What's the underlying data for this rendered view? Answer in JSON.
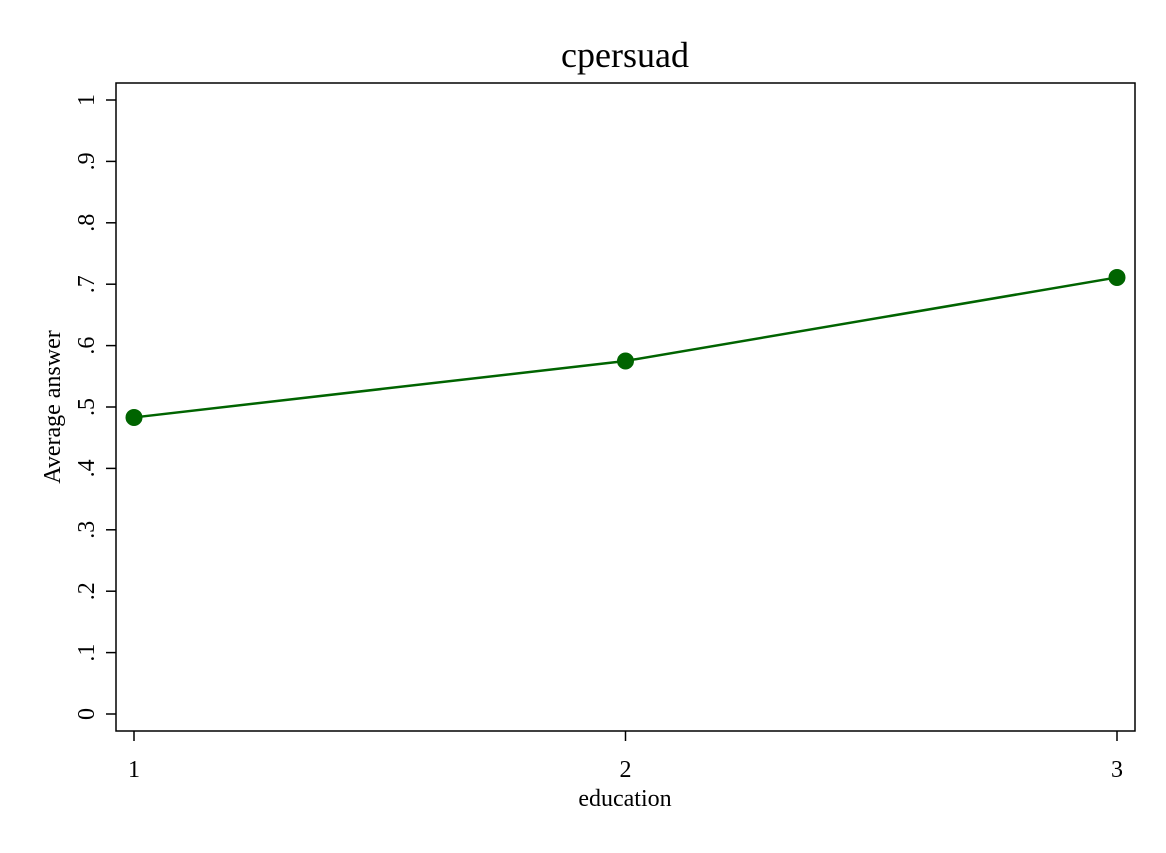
{
  "chart_data": {
    "type": "line",
    "title": "cpersuad",
    "xlabel": "education",
    "ylabel": "Average answer",
    "x": [
      1,
      2,
      3
    ],
    "xticks": [
      "1",
      "2",
      "3"
    ],
    "yticks": [
      "0",
      ".1",
      ".2",
      ".3",
      ".4",
      ".5",
      ".6",
      ".7",
      ".8",
      ".9",
      "1"
    ],
    "ytick_values": [
      0,
      0.1,
      0.2,
      0.3,
      0.4,
      0.5,
      0.6,
      0.7,
      0.8,
      0.9,
      1
    ],
    "xlim": [
      1,
      3
    ],
    "ylim": [
      0,
      1
    ],
    "grid": false,
    "series": [
      {
        "values": [
          0.483,
          0.575,
          0.711
        ],
        "color": "#006400",
        "marker": "circle"
      }
    ]
  }
}
